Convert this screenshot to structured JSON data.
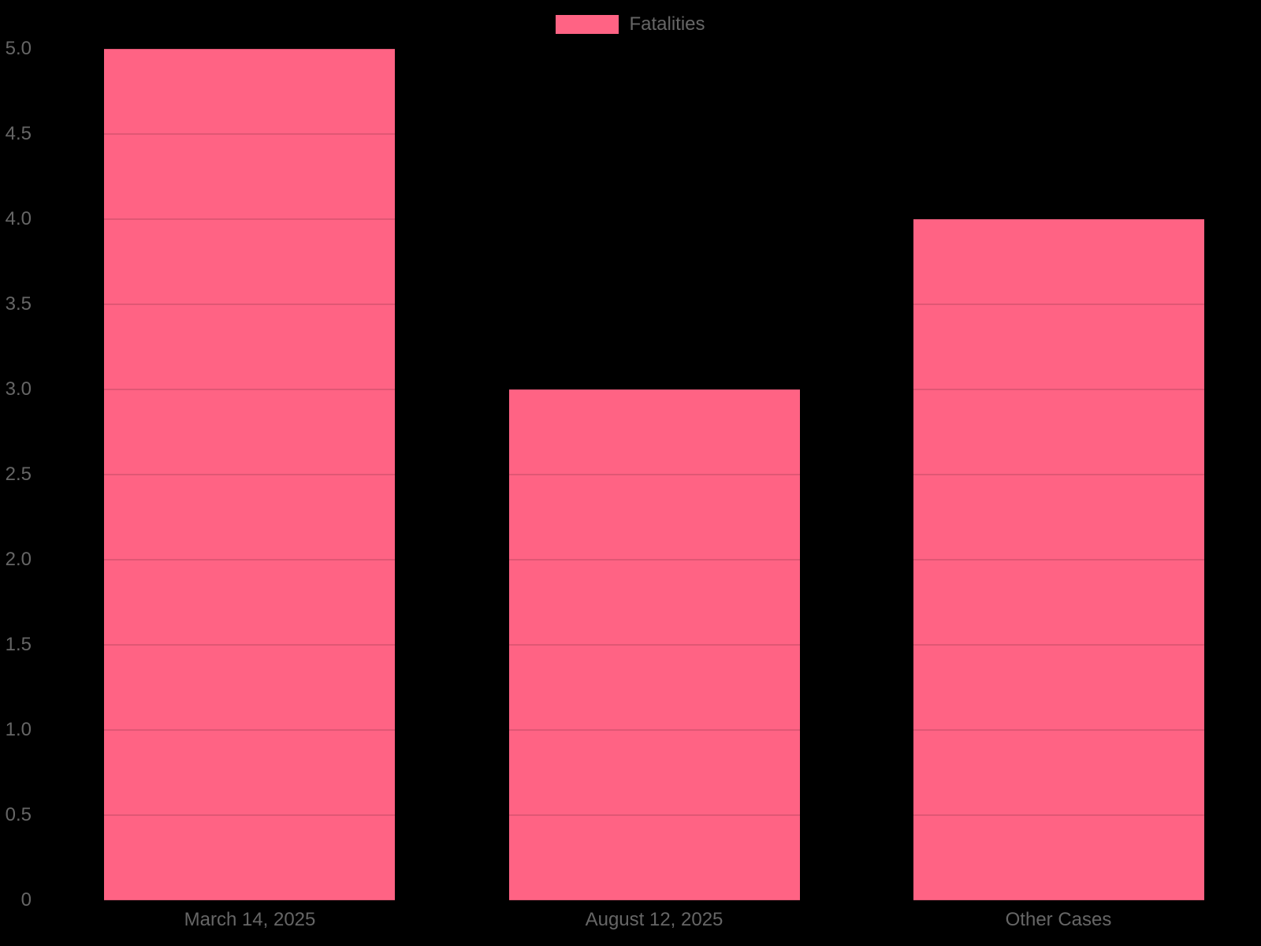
{
  "chart_data": {
    "type": "bar",
    "categories": [
      "March 14, 2025",
      "August 12, 2025",
      "Other Cases"
    ],
    "series": [
      {
        "name": "Fatalities",
        "values": [
          5,
          3,
          4
        ]
      }
    ],
    "title": "",
    "xlabel": "",
    "ylabel": "",
    "ylim": [
      0,
      5
    ],
    "ytick_step": 0.5,
    "ytick_labels": [
      "5.0",
      "4.5",
      "4.0",
      "3.5",
      "3.0",
      "2.5",
      "2.0",
      "1.5",
      "1.0",
      "0.5",
      "0"
    ],
    "ytick_values": [
      5,
      4.5,
      4,
      3.5,
      3,
      2.5,
      2,
      1.5,
      1,
      0.5,
      0
    ],
    "grid": true,
    "legend_position": "top-center",
    "colors": {
      "bar": "#FF6384",
      "background": "#000000",
      "axis_text": "#666666",
      "legend_text": "#666666"
    }
  },
  "legend": {
    "label": "Fatalities",
    "swatch_color": "#FF6384"
  }
}
